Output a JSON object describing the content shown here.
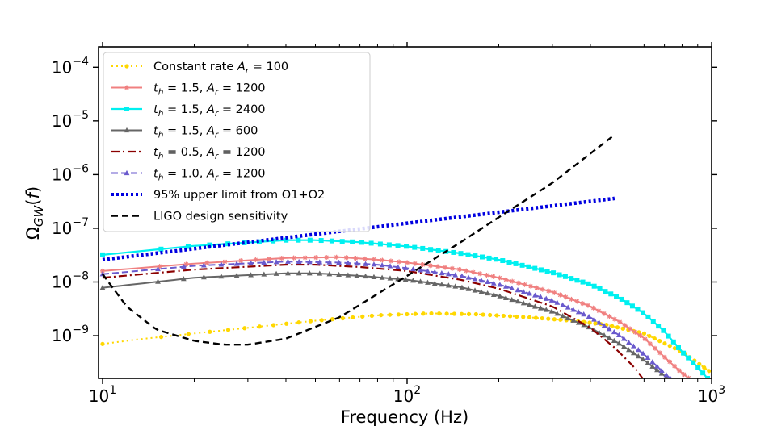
{
  "chart_data": {
    "type": "line",
    "title": "",
    "xlabel": "Frequency (Hz)",
    "ylabel": "Ω_GW(f)",
    "xscale": "log",
    "yscale": "log",
    "xlim": [
      9.7,
      1000
    ],
    "ylim": [
      1.6e-10,
      0.00024
    ],
    "grid": false,
    "legend_position": "upper-left",
    "x_ticks": [
      {
        "value": 10,
        "base": "10",
        "exp": "1"
      },
      {
        "value": 100,
        "base": "10",
        "exp": "2"
      },
      {
        "value": 1000,
        "base": "10",
        "exp": "3"
      }
    ],
    "y_ticks": [
      {
        "value": 1e-09,
        "base": "10",
        "exp": "−9"
      },
      {
        "value": 1e-08,
        "base": "10",
        "exp": "−8"
      },
      {
        "value": 1e-07,
        "base": "10",
        "exp": "−7"
      },
      {
        "value": 1e-06,
        "base": "10",
        "exp": "−6"
      },
      {
        "value": 1e-05,
        "base": "10",
        "exp": "−5"
      },
      {
        "value": 0.0001,
        "base": "10",
        "exp": "−4"
      }
    ],
    "series": [
      {
        "id": "constant-rate",
        "legend": {
          "a": "Constant rate ",
          "b": "A",
          "c": "r",
          "d": " = 100"
        },
        "color": "#ffd700",
        "dash": "2,4",
        "marker": "circle",
        "width": 2,
        "x": [
          10,
          13,
          20,
          30,
          50,
          80,
          120,
          170,
          250,
          350,
          450,
          600,
          800,
          980
        ],
        "y": [
          7e-10,
          8.5e-10,
          1.1e-09,
          1.4e-09,
          1.9e-09,
          2.4e-09,
          2.6e-09,
          2.5e-09,
          2.2e-09,
          1.9e-09,
          1.6e-09,
          1.1e-09,
          5e-10,
          2.2e-10
        ]
      },
      {
        "id": "th15-ar1200",
        "legend": {
          "a": "t",
          "b": "h",
          "c": " = 1.5, ",
          "d": "A",
          "e": "r",
          "f": " = 1200"
        },
        "color": "#f08080",
        "dash": "",
        "marker": "star",
        "width": 2,
        "x": [
          10,
          20,
          40,
          60,
          80,
          100,
          150,
          200,
          300,
          400,
          500,
          600,
          700,
          800,
          870
        ],
        "y": [
          1.6e-08,
          2.2e-08,
          2.8e-08,
          2.9e-08,
          2.6e-08,
          2.3e-08,
          1.7e-08,
          1.2e-08,
          6.5e-09,
          3.5e-09,
          1.8e-09,
          9e-10,
          4e-10,
          2e-10,
          1.4e-10
        ]
      },
      {
        "id": "th15-ar2400",
        "legend": {
          "a": "t",
          "b": "h",
          "c": " = 1.5, ",
          "d": "A",
          "e": "r",
          "f": " = 2400"
        },
        "color": "#00f0f0",
        "dash": "",
        "marker": "square",
        "width": 2.2,
        "x": [
          10,
          20,
          40,
          50,
          70,
          100,
          150,
          200,
          300,
          400,
          500,
          600,
          700,
          800,
          900,
          970
        ],
        "y": [
          3.2e-08,
          4.7e-08,
          6e-08,
          6e-08,
          5.5e-08,
          4.6e-08,
          3.4e-08,
          2.6e-08,
          1.5e-08,
          9e-09,
          5e-09,
          2.6e-09,
          1.2e-09,
          5e-10,
          2.6e-10,
          1.6e-10
        ]
      },
      {
        "id": "th15-ar600",
        "legend": {
          "a": "t",
          "b": "h",
          "c": " = 1.5, ",
          "d": "A",
          "e": "r",
          "f": " = 600"
        },
        "color": "#666666",
        "dash": "",
        "marker": "triangle",
        "width": 2,
        "x": [
          10,
          20,
          40,
          50,
          70,
          100,
          150,
          200,
          300,
          400,
          500,
          600,
          700,
          760
        ],
        "y": [
          7.8e-09,
          1.2e-08,
          1.45e-08,
          1.45e-08,
          1.3e-08,
          1.1e-08,
          8e-09,
          5.5e-09,
          2.8e-09,
          1.4e-09,
          7e-10,
          3.5e-10,
          1.8e-10,
          1.3e-10
        ]
      },
      {
        "id": "th05-ar1200",
        "legend": {
          "a": "t",
          "b": "h",
          "c": " = 0.5, ",
          "d": "A",
          "e": "r",
          "f": " = 1200"
        },
        "color": "#8b0000",
        "dash": "10,4,2,4",
        "marker": "none",
        "width": 2.2,
        "x": [
          10,
          20,
          40,
          50,
          70,
          100,
          150,
          200,
          300,
          400,
          480,
          560,
          610,
          630
        ],
        "y": [
          1.2e-08,
          1.7e-08,
          2.1e-08,
          2.1e-08,
          1.9e-08,
          1.6e-08,
          1.1e-08,
          7.5e-09,
          3.5e-09,
          1.4e-09,
          6e-10,
          2.5e-10,
          1.3e-10,
          1e-10
        ]
      },
      {
        "id": "th10-ar1200",
        "legend": {
          "a": "t",
          "b": "h",
          "c": " = 1.0, ",
          "d": "A",
          "e": "r",
          "f": " = 1200"
        },
        "color": "#6a5acd",
        "dash": "8,4",
        "marker": "triangle",
        "width": 2,
        "x": [
          10,
          20,
          40,
          60,
          80,
          100,
          150,
          200,
          300,
          400,
          500,
          600,
          700,
          760
        ],
        "y": [
          1.4e-08,
          2e-08,
          2.4e-08,
          2.3e-08,
          2.1e-08,
          1.8e-08,
          1.3e-08,
          9e-09,
          4.5e-09,
          2.2e-09,
          1e-09,
          4.5e-10,
          2e-10,
          1.3e-10
        ]
      },
      {
        "id": "upper-limit",
        "legend": {
          "a": "95% upper limit from O1+O2"
        },
        "color": "#0000e0",
        "dash": "3,3",
        "marker": "none",
        "width": 4.5,
        "x": [
          10,
          480
        ],
        "y": [
          2.6e-08,
          3.6e-07
        ]
      },
      {
        "id": "ligo-design",
        "legend": {
          "a": "LIGO design sensitivity"
        },
        "color": "#000000",
        "dash": "8,5",
        "marker": "none",
        "width": 2.4,
        "x": [
          10,
          12,
          15,
          20,
          25,
          30,
          40,
          60,
          80,
          100,
          150,
          200,
          300,
          480
        ],
        "y": [
          1.4e-08,
          3.5e-09,
          1.3e-09,
          8e-10,
          6.8e-10,
          6.8e-10,
          8.8e-10,
          2.2e-09,
          6e-09,
          1.3e-08,
          5.5e-08,
          1.6e-07,
          7e-07,
          5.5e-06
        ]
      }
    ]
  }
}
